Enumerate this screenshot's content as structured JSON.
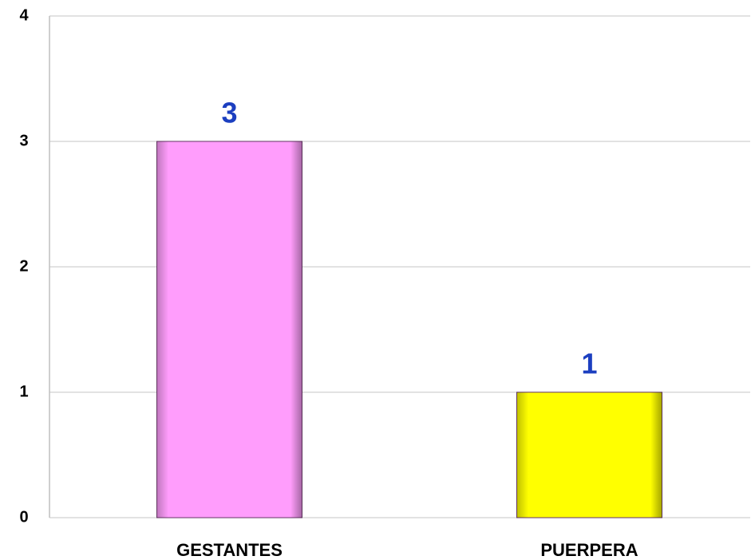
{
  "chart_data": {
    "type": "bar",
    "categories": [
      "GESTANTES",
      "PUERPERA"
    ],
    "values": [
      3,
      1
    ],
    "colors": [
      "#ff9dfc",
      "#ffff00"
    ],
    "label_color": "#1c3fc0",
    "ylim": [
      0,
      4
    ],
    "yticks": [
      0,
      1,
      2,
      3,
      4
    ],
    "grid": true
  }
}
